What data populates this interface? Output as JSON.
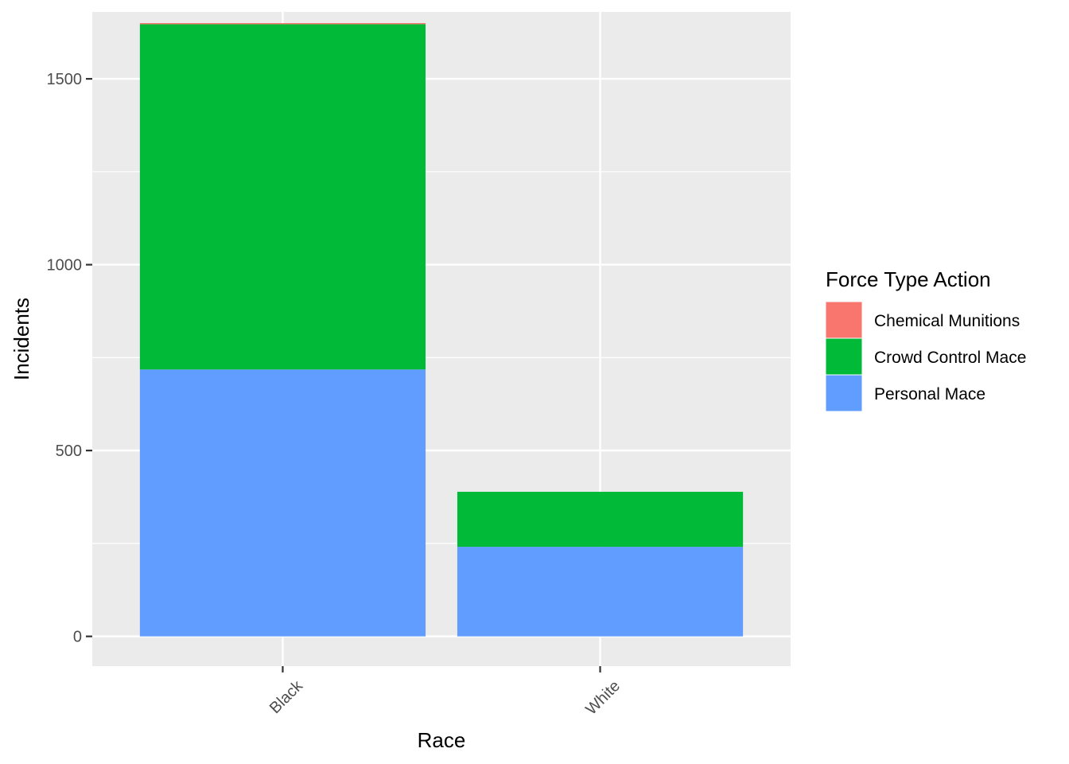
{
  "chart_data": {
    "type": "bar",
    "stacked": true,
    "title": "",
    "xlabel": "Race",
    "ylabel": "Incidents",
    "categories": [
      "Black",
      "White"
    ],
    "ylim": [
      -80,
      1680
    ],
    "yticks": [
      0,
      500,
      1000,
      1500
    ],
    "grid": true,
    "legend": {
      "title": "Force Type Action",
      "placement": "right"
    },
    "series": [
      {
        "name": "Chemical Munitions",
        "values": [
          3,
          0
        ],
        "color": "#F8766D"
      },
      {
        "name": "Crowd Control Mace",
        "values": [
          929,
          148
        ],
        "color": "#00BA38"
      },
      {
        "name": "Personal Mace",
        "values": [
          718,
          241
        ],
        "color": "#619CFF"
      }
    ],
    "panel_background": "#EBEBEB",
    "grid_color": "#FFFFFF"
  }
}
